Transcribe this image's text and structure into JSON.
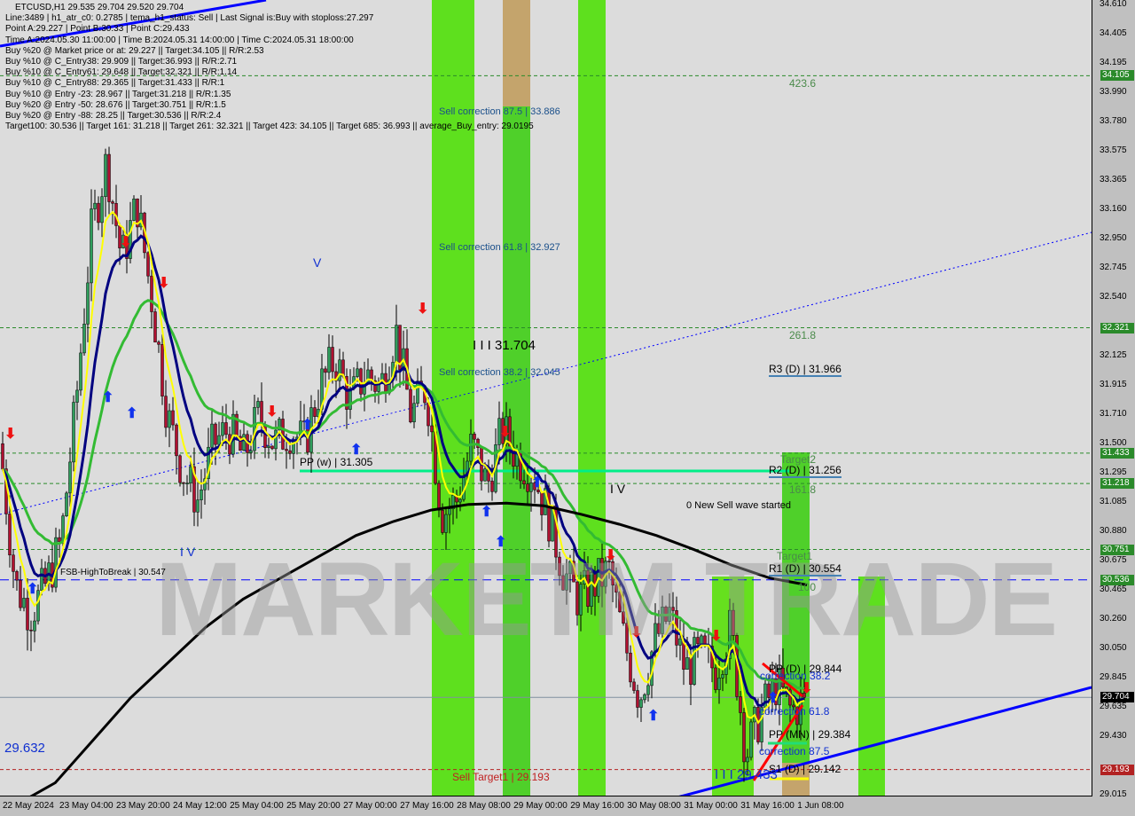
{
  "header": {
    "symbol_line": "ETCUSD,H1  29.535 29.704 29.520 29.704",
    "info_lines": [
      "Line:3489 | h1_atr_c0: 0.2785 | tema_h1_status: Sell | Last Signal is:Buy with stoploss:27.297",
      "Point A:29.227 | Point B:30.33 | Point C:29.433",
      "Time A:2024.05.30 11:00:00 | Time B:2024.05.31 14:00:00 | Time C:2024.05.31 18:00:00",
      "Buy %20 @ Market price or at: 29.227 || Target:34.105 || R/R:2.53",
      "Buy %10 @ C_Entry38: 29.909 || Target:36.993 || R/R:2.71",
      "Buy %10 @ C_Entry61: 29.648 || Target:32.321 || R/R:1.14",
      "Buy %10 @ C_Entry88: 29.365 || Target:31.433 || R/R:1",
      "Buy %10 @ Entry -23: 28.967 || Target:31.218 || R/R:1.35",
      "Buy %20 @ Entry -50: 28.676 || Target:30.751 || R/R:1.5",
      "Buy %20 @ Entry -88: 28.25 || Target:30.536 || R/R:2.4",
      "Target100: 30.536 || Target 161: 31.218 || Target 261: 32.321 || Target 423: 34.105 || Target 685: 36.993 || average_Buy_entry: 29.0195"
    ]
  },
  "watermark": "MARKETM TRADE",
  "annotations": {
    "sell_corr_875": "Sell correction 87.5 | 33.886",
    "sell_corr_618": "Sell correction 61.8 | 32.927",
    "sell_corr_382": "Sell correction 38.2 | 32.045",
    "wave_iii": "I I I 31.704",
    "fib_4236": "423.6",
    "fib_2618": "261.8",
    "r3": "R3 (D) | 31.966",
    "target2": "Target2",
    "r2": "R2 (D) | 31.256",
    "fib_1618": "161.8",
    "new_sell_wave": "0 New Sell wave started",
    "target1": "Target1",
    "r1": "R1 (D) | 30.554",
    "fib_100": "100",
    "pp_d": "PP (D) | 29.844",
    "corr_382": "correction 38.2",
    "corr_618": "correction 61.8",
    "pp_mn": "PP (MN) | 29.384",
    "corr_875": "correction 87.5",
    "s1_d": "S1 (D) | 29.142",
    "point_c": "I I I 29.433",
    "sell_target1": "Sell Target1 | 29.193",
    "low_label": "29.632",
    "pp_w": "PP (w) | 31.305",
    "fsb": "FSB-HighToBreak | 30.547",
    "wave_iv_a": "I V",
    "wave_iv_b": "I V",
    "wave_v": "V"
  },
  "chart_data": {
    "type": "candlestick",
    "symbol": "ETCUSD",
    "timeframe": "H1",
    "ylim": [
      29.015,
      34.61
    ],
    "y_ticks": [
      "34.610",
      "34.405",
      "34.195",
      "33.990",
      "33.780",
      "33.575",
      "33.365",
      "33.160",
      "32.950",
      "32.745",
      "32.540",
      "32.125",
      "31.915",
      "31.710",
      "31.500",
      "31.295",
      "31.085",
      "30.880",
      "30.675",
      "30.465",
      "30.260",
      "30.050",
      "29.845",
      "29.635",
      "29.430",
      "29.015"
    ],
    "x_ticks": [
      "22 May 2024",
      "23 May 04:00",
      "23 May 20:00",
      "24 May 12:00",
      "25 May 04:00",
      "25 May 20:00",
      "27 May 00:00",
      "27 May 16:00",
      "28 May 08:00",
      "29 May 00:00",
      "29 May 16:00",
      "30 May 08:00",
      "31 May 00:00",
      "31 May 16:00",
      "1 Jun 08:00"
    ],
    "price_tags": [
      {
        "value": "34.105",
        "color": "#2a8a2a"
      },
      {
        "value": "32.321",
        "color": "#2a8a2a"
      },
      {
        "value": "31.433",
        "color": "#2a8a2a"
      },
      {
        "value": "31.218",
        "color": "#2a8a2a"
      },
      {
        "value": "30.751",
        "color": "#2a8a2a"
      },
      {
        "value": "30.536",
        "color": "#2a8a2a"
      },
      {
        "value": "29.704",
        "color": "#000000"
      },
      {
        "value": "29.193",
        "color": "#b22222"
      }
    ],
    "approx_close_path": [
      31.5,
      30.5,
      30.3,
      30.5,
      30.8,
      31.8,
      33.0,
      33.5,
      32.8,
      33.2,
      32.5,
      31.7,
      31.3,
      31.1,
      31.5,
      31.6,
      31.4,
      31.7,
      31.5,
      31.6,
      31.5,
      31.9,
      32.1,
      31.8,
      32.0,
      31.9,
      32.3,
      31.7,
      31.9,
      31.0,
      31.1,
      31.5,
      31.2,
      31.6,
      31.4,
      31.3,
      31.0,
      30.6,
      30.4,
      30.5,
      30.6,
      30.1,
      29.7,
      30.1,
      30.3,
      29.9,
      30.0,
      29.9,
      30.2,
      29.3,
      29.6,
      29.8,
      29.6,
      29.704
    ],
    "long_ma_path": [
      28.95,
      29.1,
      29.4,
      29.7,
      29.95,
      30.2,
      30.4,
      30.55,
      30.7,
      30.85,
      30.95,
      31.03,
      31.07,
      31.08,
      31.06,
      31.0,
      30.93,
      30.85,
      30.75,
      30.64,
      30.55,
      30.5
    ],
    "colors": {
      "bull": "#2e9e5b",
      "bear": "#b01030",
      "ma_fast": "#ffff00",
      "ma_mid": "#000080",
      "ma_slow": "#33bb33",
      "ma_long": "#000000",
      "levels": "#2a8a2a",
      "trend": "#0000ff"
    }
  }
}
